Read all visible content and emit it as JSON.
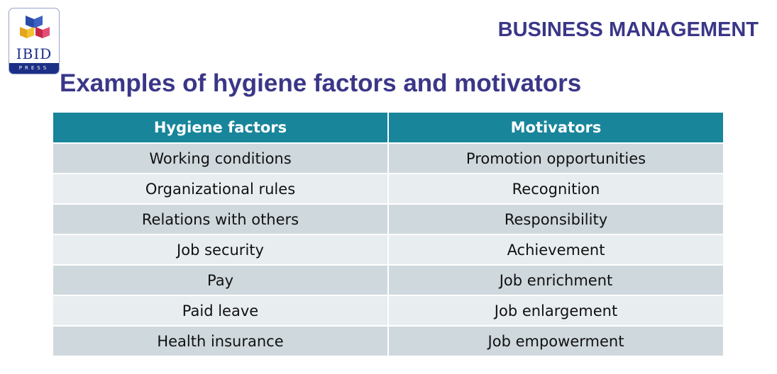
{
  "logo": {
    "name": "IBID",
    "sub": "PRESS"
  },
  "header": {
    "brand": "BUSINESS MANAGEMENT"
  },
  "slide": {
    "title": "Examples of hygiene factors and motivators"
  },
  "table": {
    "headers": [
      "Hygiene factors",
      "Motivators"
    ],
    "rows": [
      [
        "Working conditions",
        "Promotion opportunities"
      ],
      [
        "Organizational rules",
        "Recognition"
      ],
      [
        "Relations with others",
        "Responsibility"
      ],
      [
        "Job security",
        "Achievement"
      ],
      [
        "Pay",
        "Job enrichment"
      ],
      [
        "Paid leave",
        "Job enlargement"
      ],
      [
        "Health insurance",
        "Job empowerment"
      ]
    ]
  },
  "colors": {
    "title": "#3a3788",
    "header_fill": "#18859b",
    "row_dark": "#cfd8dd",
    "row_light": "#e8edf0",
    "logo_blue": "#1c2f86"
  }
}
